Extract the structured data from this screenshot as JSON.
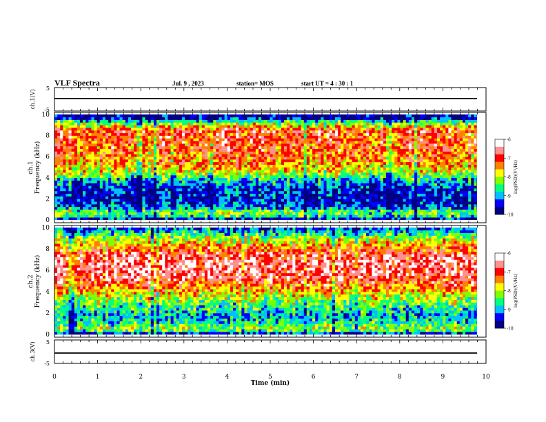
{
  "header": {
    "title": "VLF Spectra",
    "date": "Jul. 9 , 2023",
    "station": "station= MOS",
    "start_ut": "start UT = 4 : 30 : 1"
  },
  "chart_data": [
    {
      "type": "line",
      "panel": "ch1-waveform",
      "ylabel": "ch.1(V)",
      "ylim": [
        -5,
        5
      ],
      "yticks": [
        "5",
        "-5"
      ],
      "series": [
        {
          "x": [
            0,
            9.85
          ],
          "values": [
            0,
            0
          ]
        }
      ]
    },
    {
      "type": "heatmap",
      "panel": "ch1-spectrogram",
      "ylabel": "ch.1\nFrequency (kHz)",
      "ylim": [
        0,
        10
      ],
      "yticks": [
        "0",
        "2",
        "4",
        "6",
        "8",
        "10"
      ],
      "xlim": [
        0,
        10
      ],
      "colorbar": {
        "label": "log(PSD)(V²/Hz)",
        "range": [
          -10,
          -6
        ],
        "ticks": [
          "-6",
          "-7",
          "-8",
          "-9",
          "-10"
        ],
        "colors": [
          "#000080",
          "#0000ff",
          "#00c0ff",
          "#00ff80",
          "#80ff00",
          "#ffff00",
          "#ff8000",
          "#ff0000",
          "#ff9090",
          "#ffffff"
        ]
      },
      "band_profile_khz": [
        {
          "f": 0.0,
          "level": -9.9
        },
        {
          "f": 0.4,
          "level": -8.5
        },
        {
          "f": 0.8,
          "level": -8.2
        },
        {
          "f": 1.2,
          "level": -9.3
        },
        {
          "f": 2.0,
          "level": -9.6
        },
        {
          "f": 3.0,
          "level": -9.4
        },
        {
          "f": 3.8,
          "level": -8.9
        },
        {
          "f": 4.5,
          "level": -7.9
        },
        {
          "f": 5.5,
          "level": -7.4
        },
        {
          "f": 6.5,
          "level": -7.2
        },
        {
          "f": 7.5,
          "level": -7.1
        },
        {
          "f": 8.5,
          "level": -7.0
        },
        {
          "f": 9.2,
          "level": -8.2
        },
        {
          "f": 9.6,
          "level": -9.5
        },
        {
          "f": 10.0,
          "level": -9.8
        }
      ]
    },
    {
      "type": "heatmap",
      "panel": "ch2-spectrogram",
      "ylabel": "ch.2\nFrequency (kHz)",
      "ylim": [
        0,
        10
      ],
      "yticks": [
        "0",
        "2",
        "4",
        "6",
        "8",
        "10"
      ],
      "xlim": [
        0,
        10
      ],
      "colorbar": {
        "label": "log(PSD)(V²/Hz)",
        "range": [
          -10,
          -6
        ],
        "ticks": [
          "-6",
          "-7",
          "-8",
          "-9",
          "-10"
        ],
        "colors": [
          "#000080",
          "#0000ff",
          "#00c0ff",
          "#00ff80",
          "#80ff00",
          "#ffff00",
          "#ff8000",
          "#ff0000",
          "#ff9090",
          "#ffffff"
        ]
      },
      "band_profile_khz": [
        {
          "f": 0.0,
          "level": -9.8
        },
        {
          "f": 0.5,
          "level": -8.0
        },
        {
          "f": 1.0,
          "level": -8.6
        },
        {
          "f": 1.8,
          "level": -9.0
        },
        {
          "f": 2.5,
          "level": -8.6
        },
        {
          "f": 3.5,
          "level": -8.0
        },
        {
          "f": 4.5,
          "level": -7.3
        },
        {
          "f": 5.5,
          "level": -6.7
        },
        {
          "f": 6.5,
          "level": -6.6
        },
        {
          "f": 7.5,
          "level": -6.8
        },
        {
          "f": 8.2,
          "level": -7.4
        },
        {
          "f": 9.0,
          "level": -8.1
        },
        {
          "f": 9.6,
          "level": -8.8
        },
        {
          "f": 10.0,
          "level": -9.5
        }
      ]
    },
    {
      "type": "line",
      "panel": "ch3-waveform",
      "ylabel": "ch.3(V)",
      "ylim": [
        -5,
        5
      ],
      "yticks": [
        "5",
        "-5"
      ],
      "xlabel": "Time (min)",
      "xlim": [
        0,
        10
      ],
      "xticks": [
        "0",
        "1",
        "2",
        "3",
        "4",
        "5",
        "6",
        "7",
        "8",
        "9",
        "10"
      ],
      "series": [
        {
          "x": [
            0,
            9.85
          ],
          "values": [
            0,
            0
          ]
        }
      ]
    }
  ]
}
